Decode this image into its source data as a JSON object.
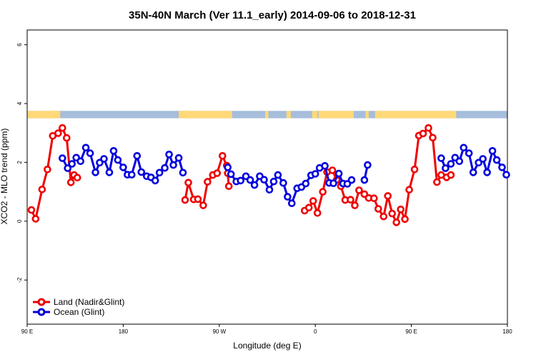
{
  "chart_data": {
    "type": "line",
    "title": "35N-40N March (Ver 11.1_early)   2014-09-06 to 2018-12-31",
    "xlabel": "Longitude (deg E)",
    "ylabel": "XCO2 - MLO trend (ppm)",
    "xlim": [
      90,
      540
    ],
    "ylim": [
      -3.5,
      6.5
    ],
    "x_ticks": [
      {
        "value": 90,
        "label": "90 E"
      },
      {
        "value": 180,
        "label": "180"
      },
      {
        "value": 270,
        "label": "90 W"
      },
      {
        "value": 360,
        "label": "0"
      },
      {
        "value": 450,
        "label": "90 E"
      },
      {
        "value": 540,
        "label": "180"
      }
    ],
    "y_ticks": [
      {
        "value": -2,
        "label": "-2"
      },
      {
        "value": 0,
        "label": "0"
      },
      {
        "value": 2,
        "label": "2"
      },
      {
        "value": 4,
        "label": "4"
      },
      {
        "value": 6,
        "label": "6"
      }
    ],
    "grid": false,
    "legend_position": "bottom-left",
    "land_ocean_strip": {
      "y_range": [
        3.5,
        3.75
      ],
      "land_color": "#ffd978",
      "ocean_color": "#a6bddb",
      "land_segments": [
        [
          90,
          121
        ],
        [
          232,
          282
        ],
        [
          313,
          316
        ],
        [
          333,
          337
        ],
        [
          357,
          362
        ],
        [
          363,
          396
        ],
        [
          407,
          410
        ],
        [
          416,
          492
        ],
        [
          543,
          630
        ]
      ]
    },
    "series": [
      {
        "name": "Land (Nadir&Glint)",
        "color": "#ee0000",
        "segments": [
          {
            "x": [
              94,
              98,
              104,
              109,
              114,
              119,
              123,
              127,
              131,
              134,
              137
            ],
            "y": [
              0.38,
              0.08,
              1.08,
              1.76,
              2.9,
              2.99,
              3.17,
              2.83,
              1.32,
              1.57,
              1.48
            ]
          },
          {
            "x": [
              238,
              241,
              246,
              250,
              255,
              259,
              264,
              268,
              273,
              277
            ],
            "y": [
              0.72,
              1.31,
              0.74,
              0.75,
              0.54,
              1.34,
              1.57,
              1.63,
              2.22,
              1.89
            ]
          },
          {
            "x": [
              278,
              279
            ],
            "y": [
              1.63,
              1.19
            ]
          },
          {
            "x": [
              350,
              354,
              358,
              362,
              367,
              371,
              376,
              380,
              384,
              388,
              393,
              397,
              401,
              406,
              410,
              415,
              419,
              424,
              428,
              432,
              436,
              440,
              444,
              448,
              453,
              457,
              461,
              466,
              470,
              474,
              478,
              483,
              487
            ],
            "y": [
              0.36,
              0.46,
              0.69,
              0.28,
              1.0,
              1.67,
              1.73,
              1.41,
              1.19,
              0.72,
              0.73,
              0.54,
              1.05,
              0.92,
              0.79,
              0.78,
              0.42,
              0.16,
              0.86,
              0.26,
              -0.04,
              0.4,
              0.07,
              1.07,
              1.76,
              2.91,
              2.98,
              3.17,
              2.84,
              1.33,
              1.57,
              1.49,
              1.57
            ]
          }
        ]
      },
      {
        "name": "Ocean (Glint)",
        "color": "#0000dd",
        "segments": [
          {
            "x": [
              123,
              128,
              132,
              136,
              140,
              145,
              149,
              154,
              158,
              162,
              167,
              171,
              175,
              180,
              184,
              188,
              193,
              197,
              202,
              206,
              210,
              214,
              219,
              223,
              227,
              232,
              236
            ],
            "y": [
              2.14,
              1.8,
              1.95,
              2.16,
              2.04,
              2.5,
              2.31,
              1.66,
              1.99,
              2.12,
              1.66,
              2.39,
              2.08,
              1.83,
              1.58,
              1.58,
              2.22,
              1.67,
              1.53,
              1.49,
              1.38,
              1.65,
              1.81,
              2.27,
              1.91,
              2.15,
              1.65
            ]
          },
          {
            "x": [
              278,
              281,
              286,
              290,
              295,
              299,
              303,
              308,
              312,
              317,
              321,
              325,
              330,
              334,
              338,
              343,
              347,
              351,
              356,
              360,
              364,
              369,
              373,
              377,
              382,
              386,
              390,
              394
            ],
            "y": [
              1.83,
              1.6,
              1.35,
              1.38,
              1.53,
              1.4,
              1.23,
              1.53,
              1.41,
              1.07,
              1.35,
              1.57,
              1.3,
              0.83,
              0.61,
              1.12,
              1.16,
              1.28,
              1.56,
              1.61,
              1.81,
              1.88,
              1.3,
              1.29,
              1.62,
              1.28,
              1.27,
              1.4
            ]
          },
          {
            "x": [
              406,
              409
            ],
            "y": [
              1.4,
              1.91
            ]
          },
          {
            "x": [
              478,
              482,
              487,
              491,
              495,
              499,
              504,
              508,
              513,
              517,
              521,
              526,
              530,
              535,
              539
            ],
            "y": [
              2.14,
              1.8,
              1.95,
              2.16,
              2.04,
              2.5,
              2.31,
              1.66,
              1.99,
              2.12,
              1.66,
              2.39,
              2.08,
              1.83,
              1.58
            ]
          }
        ]
      }
    ]
  }
}
